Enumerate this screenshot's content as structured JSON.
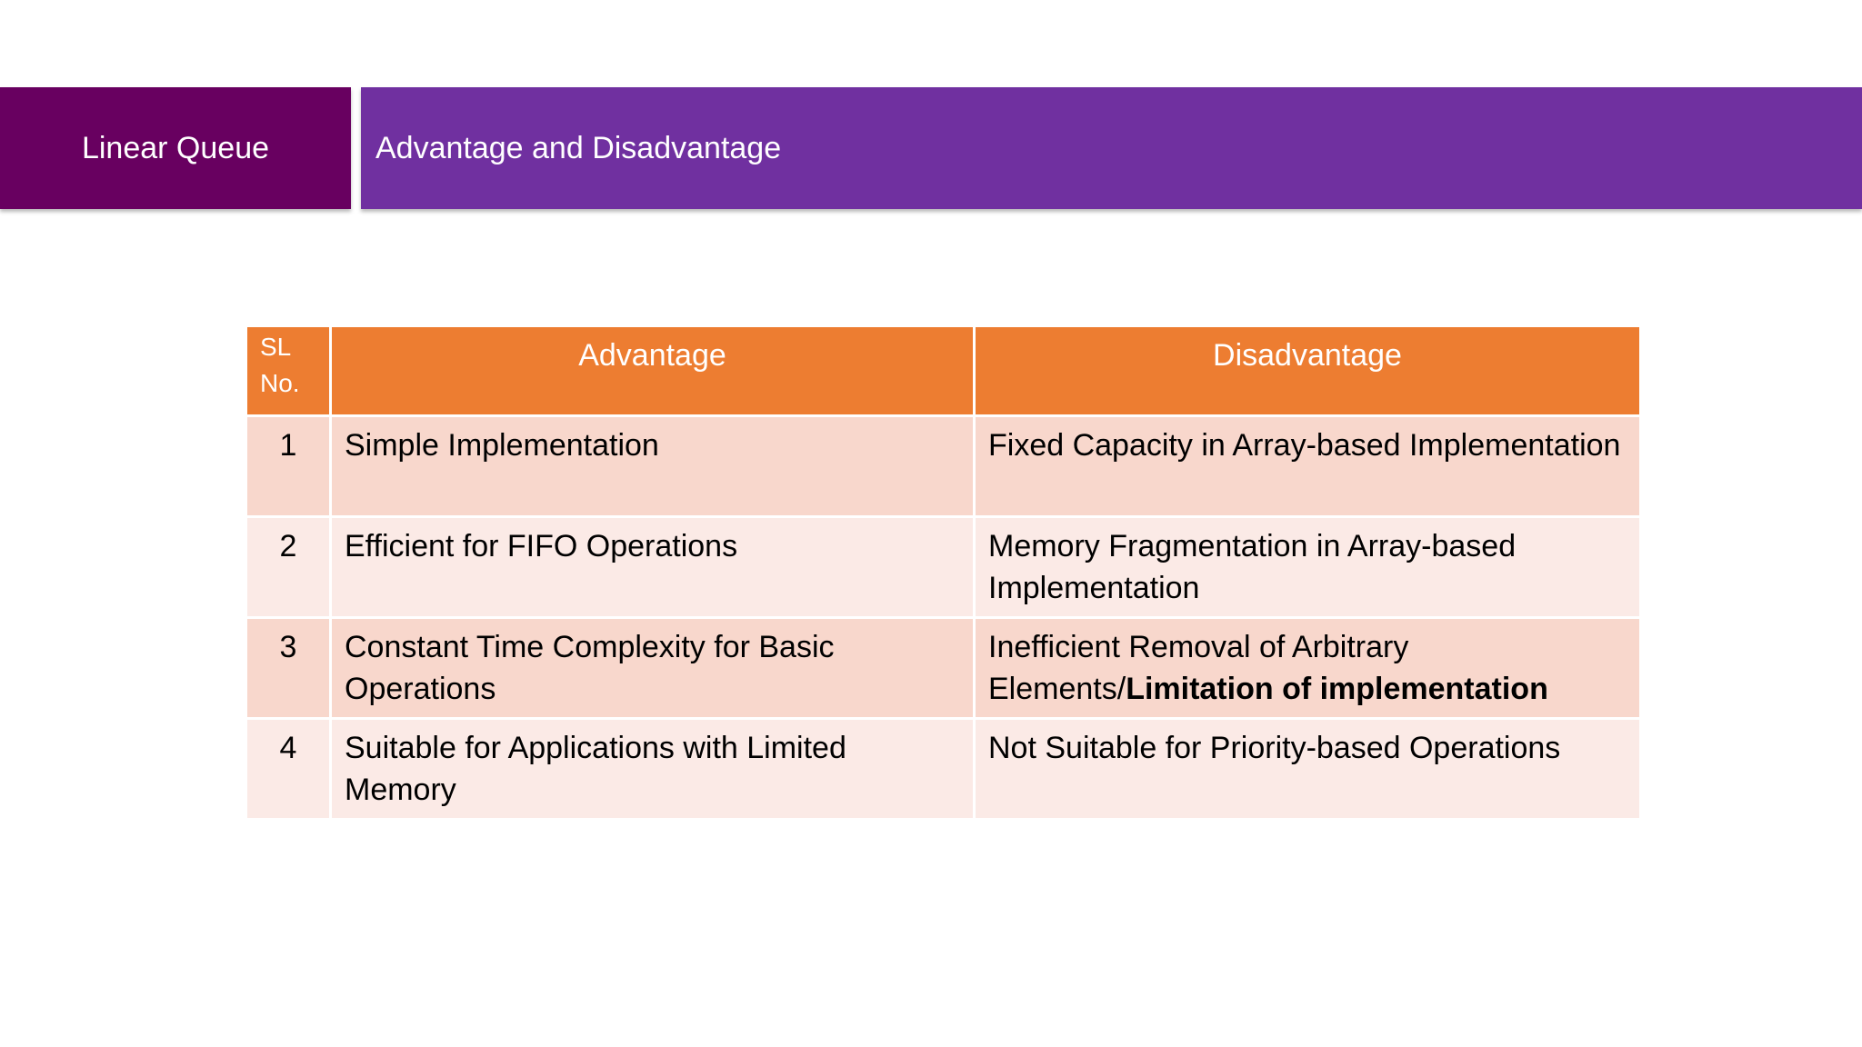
{
  "header": {
    "section_title": "Linear Queue",
    "slide_title": "Advantage and Disadvantage"
  },
  "table": {
    "headers": {
      "sl": "SL No.",
      "advantage": "Advantage",
      "disadvantage": "Disadvantage"
    },
    "rows": [
      {
        "sl": "1",
        "advantage": "Simple Implementation",
        "disadvantage": "Fixed Capacity in Array-based Implementation",
        "disadvantage_bold": ""
      },
      {
        "sl": "2",
        "advantage": "Efficient for FIFO Operations",
        "disadvantage": "Memory Fragmentation in Array-based Implementation",
        "disadvantage_bold": ""
      },
      {
        "sl": "3",
        "advantage": "Constant Time Complexity for Basic Operations",
        "disadvantage": "Inefficient Removal of Arbitrary Elements/",
        "disadvantage_bold": "Limitation of implementation"
      },
      {
        "sl": "4",
        "advantage": "Suitable for Applications with Limited Memory",
        "disadvantage": "Not Suitable for Priority-based Operations",
        "disadvantage_bold": ""
      }
    ]
  },
  "colors": {
    "section_banner": "#680060",
    "title_banner": "#7030a0",
    "table_header": "#ed7d31",
    "row_odd": "#f8d7cc",
    "row_even": "#fbeae6"
  }
}
